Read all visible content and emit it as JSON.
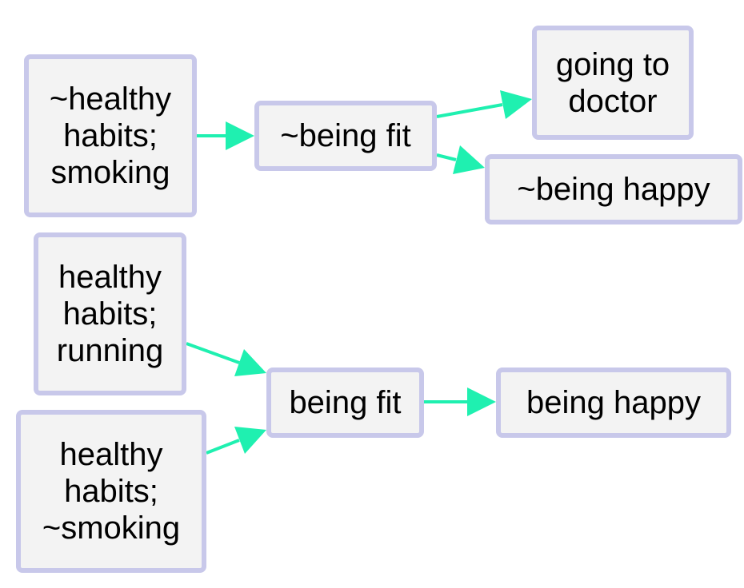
{
  "colors": {
    "node_fill": "#f3f3f3",
    "node_border": "#c8c8ea",
    "edge": "#1ff0b0"
  },
  "nodes": {
    "n1": "~healthy\nhabits;\nsmoking",
    "n2": "~being fit",
    "n3": "going to\ndoctor",
    "n4": "~being happy",
    "n5": "healthy\nhabits;\nrunning",
    "n6": "healthy\nhabits;\n~smoking",
    "n7": "being fit",
    "n8": "being happy"
  },
  "edges": [
    {
      "from": "n1",
      "to": "n2"
    },
    {
      "from": "n2",
      "to": "n3"
    },
    {
      "from": "n2",
      "to": "n4"
    },
    {
      "from": "n5",
      "to": "n7"
    },
    {
      "from": "n6",
      "to": "n7"
    },
    {
      "from": "n7",
      "to": "n8"
    }
  ]
}
